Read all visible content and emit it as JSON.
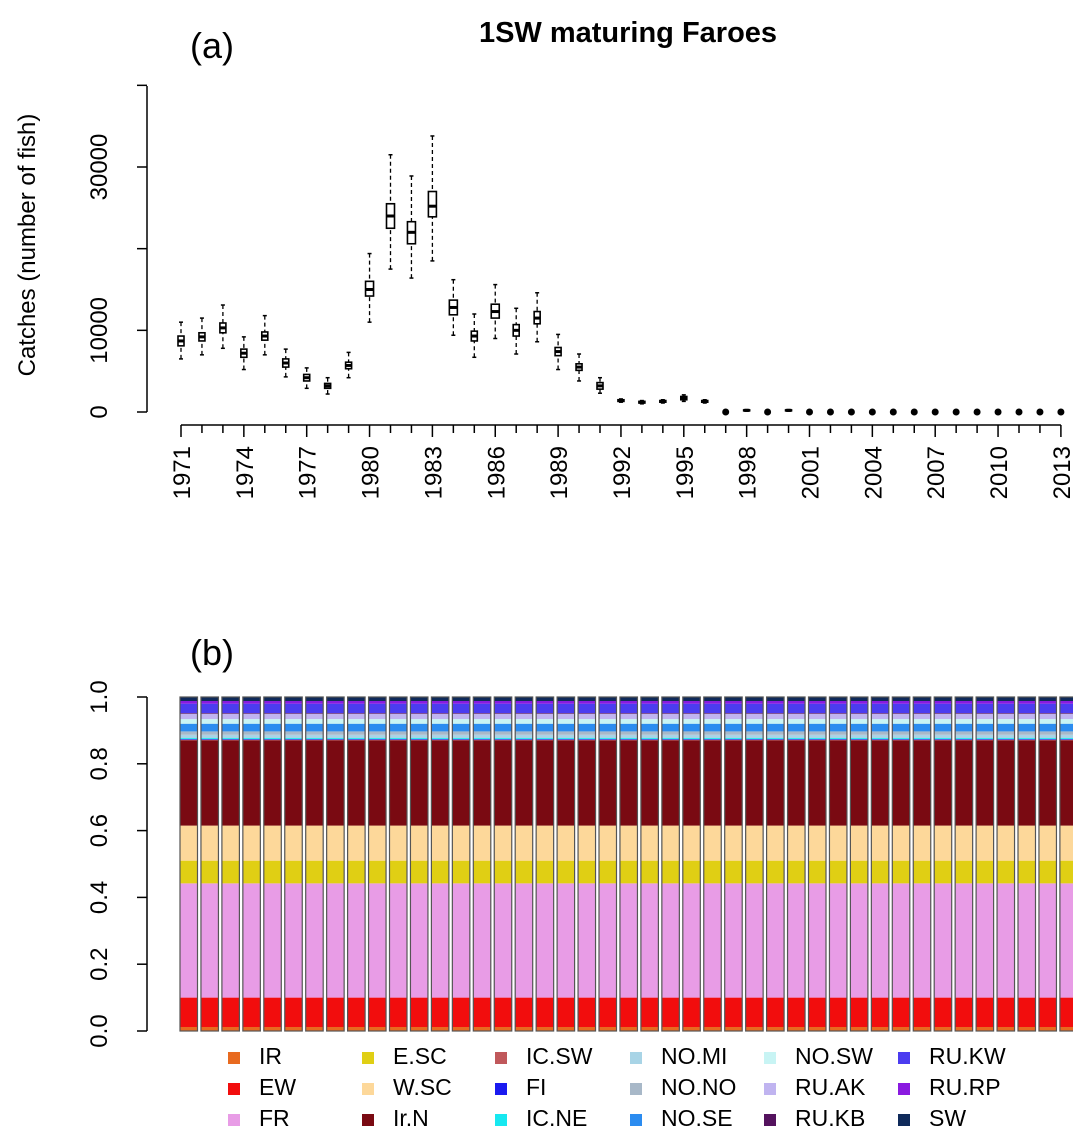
{
  "chart_data": [
    {
      "panel": "(a)",
      "type": "boxplot",
      "title": "1SW maturing Faroes",
      "xlabel": "",
      "ylabel": "Catches (number of fish)",
      "ylim": [
        -500,
        40000
      ],
      "yticks": [
        0,
        10000,
        30000
      ],
      "y_tick_labels": [
        "0",
        "10000",
        "30000"
      ],
      "x_tick_labels": [
        "1971",
        "1974",
        "1977",
        "1980",
        "1983",
        "1986",
        "1989",
        "1992",
        "1995",
        "1998",
        "2001",
        "2004",
        "2007",
        "2010",
        "2013"
      ],
      "years": [
        1971,
        1972,
        1973,
        1974,
        1975,
        1976,
        1977,
        1978,
        1979,
        1980,
        1981,
        1982,
        1983,
        1984,
        1985,
        1986,
        1987,
        1988,
        1989,
        1990,
        1991,
        1992,
        1993,
        1994,
        1995,
        1996,
        1997,
        1998,
        1999,
        2000,
        2001,
        2002,
        2003,
        2004,
        2005,
        2006,
        2007,
        2008,
        2009,
        2010,
        2011,
        2012,
        2013
      ],
      "median": [
        8700,
        9200,
        10300,
        7200,
        9300,
        6000,
        4200,
        3200,
        5700,
        15000,
        24000,
        22000,
        25200,
        12800,
        9300,
        12300,
        10000,
        11500,
        7400,
        5500,
        3200,
        1400,
        1200,
        1300,
        1700,
        1300,
        0,
        200,
        0,
        200,
        0,
        0,
        0,
        0,
        0,
        0,
        0,
        0,
        0,
        0,
        0,
        0,
        0
      ],
      "q1": [
        8100,
        8700,
        9700,
        6700,
        8800,
        5500,
        3800,
        2900,
        5300,
        14200,
        22500,
        20600,
        23900,
        11900,
        8700,
        11500,
        9300,
        10800,
        6900,
        5100,
        2800,
        1300,
        1100,
        1200,
        1500,
        1200,
        0,
        150,
        0,
        150,
        0,
        0,
        0,
        0,
        0,
        0,
        0,
        0,
        0,
        0,
        0,
        0,
        0
      ],
      "q3": [
        9300,
        9700,
        10900,
        7700,
        9800,
        6500,
        4600,
        3500,
        6100,
        16000,
        25500,
        23300,
        27000,
        13700,
        9900,
        13200,
        10700,
        12300,
        7900,
        5900,
        3600,
        1500,
        1300,
        1400,
        1900,
        1400,
        0,
        250,
        0,
        250,
        0,
        0,
        0,
        0,
        0,
        0,
        0,
        0,
        0,
        0,
        0,
        0,
        0
      ],
      "whisker_low": [
        6500,
        7000,
        7800,
        5200,
        7000,
        4300,
        2900,
        2200,
        4200,
        11000,
        17500,
        16400,
        18500,
        9400,
        6700,
        9000,
        7100,
        8600,
        5200,
        3800,
        2300,
        1200,
        1000,
        1100,
        1300,
        1100,
        0,
        100,
        0,
        100,
        0,
        0,
        0,
        0,
        0,
        0,
        0,
        0,
        0,
        0,
        0,
        0,
        0
      ],
      "whisker_high": [
        11000,
        11500,
        13100,
        9200,
        11800,
        7700,
        5400,
        4200,
        7300,
        19400,
        31500,
        28900,
        33800,
        16200,
        12000,
        15600,
        12700,
        14600,
        9500,
        7100,
        4200,
        1600,
        1400,
        1500,
        2100,
        1500,
        0,
        300,
        0,
        300,
        0,
        0,
        0,
        0,
        0,
        0,
        0,
        0,
        0,
        0,
        0,
        0,
        0
      ],
      "grid": false
    },
    {
      "panel": "(b)",
      "type": "stacked-bar",
      "title": "",
      "xlabel": "",
      "ylabel": "",
      "ylim": [
        0,
        1
      ],
      "y_tick_labels": [
        "0.0",
        "0.2",
        "0.4",
        "0.6",
        "0.8",
        "1.0"
      ],
      "bar_count": 43,
      "grid": false,
      "legend_position": "bottom",
      "series": [
        {
          "name": "IR",
          "color": "#e86a1f",
          "value": 0.012
        },
        {
          "name": "EW",
          "color": "#f20d0d",
          "value": 0.088
        },
        {
          "name": "FR",
          "color": "#e89ce6",
          "value": 0.342
        },
        {
          "name": "E.SC",
          "color": "#e0cf14",
          "value": 0.068
        },
        {
          "name": "W.SC",
          "color": "#fdd89a",
          "value": 0.105
        },
        {
          "name": "Ir.N",
          "color": "#7a0a12",
          "value": 0.255
        },
        {
          "name": "IC.SW",
          "color": "#c0585b",
          "value": 0.002
        },
        {
          "name": "FI",
          "color": "#1a1af0",
          "value": 0.002
        },
        {
          "name": "IC.NE",
          "color": "#17e8f0",
          "value": 0.003
        },
        {
          "name": "NO.MI",
          "color": "#a8d4e6",
          "value": 0.01
        },
        {
          "name": "NO.NO",
          "color": "#a8b8c8",
          "value": 0.01
        },
        {
          "name": "NO.SE",
          "color": "#2b8cf0",
          "value": 0.023
        },
        {
          "name": "NO.SW",
          "color": "#c8f4f4",
          "value": 0.014
        },
        {
          "name": "RU.AK",
          "color": "#c0b4f0",
          "value": 0.016
        },
        {
          "name": "RU.KB",
          "color": "#54125e",
          "value": 0.002
        },
        {
          "name": "RU.KW",
          "color": "#4b3cf0",
          "value": 0.028
        },
        {
          "name": "RU.RP",
          "color": "#8a1ae0",
          "value": 0.008
        },
        {
          "name": "SW",
          "color": "#0f2a5a",
          "value": 0.012
        }
      ],
      "legend_columns": [
        [
          "IR",
          "EW",
          "FR"
        ],
        [
          "E.SC",
          "W.SC",
          "Ir.N"
        ],
        [
          "IC.SW",
          "FI",
          "IC.NE"
        ],
        [
          "NO.MI",
          "NO.NO",
          "NO.SE"
        ],
        [
          "NO.SW",
          "RU.AK",
          "RU.KB"
        ],
        [
          "RU.KW",
          "RU.RP",
          "SW"
        ]
      ]
    }
  ]
}
